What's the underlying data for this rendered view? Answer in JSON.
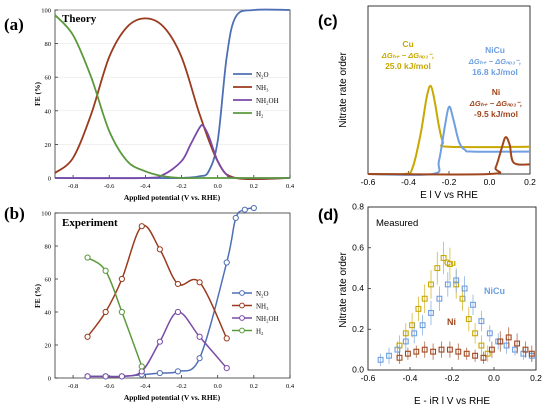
{
  "colors": {
    "n2o": "#4f6fb5",
    "nh3": "#9b3a1e",
    "nh2oh": "#7a4aa8",
    "h2": "#5b9a3c",
    "cu": "#c9a800",
    "nicu": "#6f9fe0",
    "ni": "#a0461e"
  },
  "chart_data": [
    {
      "id": "a",
      "panel_label": "(a)",
      "type": "line",
      "title": "Theory",
      "xlabel": "Applied potential (V vs. RHE)",
      "ylabel": "FE (%)",
      "xlim": [
        -0.9,
        0.4
      ],
      "ylim": [
        0,
        100
      ],
      "x_ticks": [
        "-0.8",
        "-0.6",
        "-0.4",
        "-0.2",
        "0.0",
        "0.2",
        "0.4"
      ],
      "y_ticks": [
        "0",
        "20",
        "40",
        "60",
        "80",
        "100"
      ],
      "legend_position": "right",
      "series": [
        {
          "name": "N₂O",
          "color_key": "n2o",
          "x": [
            -0.9,
            -0.4,
            -0.2,
            -0.1,
            -0.05,
            0.0,
            0.05,
            0.1,
            0.2,
            0.4
          ],
          "y": [
            0,
            0,
            0,
            1,
            4,
            22,
            72,
            96,
            100,
            100
          ]
        },
        {
          "name": "NH₃",
          "color_key": "nh3",
          "x": [
            -0.9,
            -0.8,
            -0.7,
            -0.6,
            -0.5,
            -0.4,
            -0.3,
            -0.2,
            -0.1,
            0.0,
            0.1,
            0.4
          ],
          "y": [
            3,
            12,
            38,
            72,
            90,
            95,
            90,
            72,
            38,
            10,
            0,
            0
          ]
        },
        {
          "name": "NH₂OH",
          "color_key": "nh2oh",
          "x": [
            -0.9,
            -0.4,
            -0.3,
            -0.2,
            -0.15,
            -0.1,
            -0.08,
            -0.05,
            0.0,
            0.05,
            0.1,
            0.4
          ],
          "y": [
            0,
            0,
            2,
            10,
            20,
            30,
            31,
            25,
            10,
            2,
            0,
            0
          ]
        },
        {
          "name": "H₂",
          "color_key": "h2",
          "x": [
            -0.9,
            -0.8,
            -0.7,
            -0.6,
            -0.5,
            -0.4,
            -0.3,
            -0.2,
            -0.1,
            0.4
          ],
          "y": [
            97,
            85,
            60,
            28,
            10,
            4,
            1,
            0,
            0,
            0
          ]
        }
      ]
    },
    {
      "id": "b",
      "panel_label": "(b)",
      "type": "scatter",
      "title": "Experiment",
      "xlabel": "Applied potential (V vs. RHE)",
      "ylabel": "FE (%)",
      "xlim": [
        -0.9,
        0.4
      ],
      "ylim": [
        0,
        100
      ],
      "x_ticks": [
        "-0.8",
        "-0.6",
        "-0.4",
        "-0.2",
        "0.0",
        "0.2",
        "0.4"
      ],
      "y_ticks": [
        "0",
        "20",
        "40",
        "60",
        "80",
        "100"
      ],
      "legend_position": "right",
      "series": [
        {
          "name": "N₂O",
          "color_key": "n2o",
          "x": [
            -0.72,
            -0.62,
            -0.53,
            -0.42,
            -0.32,
            -0.22,
            -0.1,
            0.05,
            0.1,
            0.15,
            0.2
          ],
          "y": [
            1,
            1,
            1,
            2,
            3,
            4,
            12,
            70,
            97,
            102,
            103
          ]
        },
        {
          "name": "NH₃",
          "color_key": "nh3",
          "x": [
            -0.72,
            -0.62,
            -0.53,
            -0.42,
            -0.32,
            -0.22,
            -0.1,
            0.05
          ],
          "y": [
            25,
            40,
            60,
            92,
            78,
            57,
            58,
            24
          ]
        },
        {
          "name": "NH₂OH",
          "color_key": "nh2oh",
          "x": [
            -0.72,
            -0.62,
            -0.53,
            -0.42,
            -0.32,
            -0.22,
            -0.1,
            0.05
          ],
          "y": [
            1,
            1,
            1,
            4,
            22,
            40,
            25,
            6
          ]
        },
        {
          "name": "H₂",
          "color_key": "h2",
          "x": [
            -0.72,
            -0.62,
            -0.53,
            -0.42
          ],
          "y": [
            73,
            65,
            40,
            7
          ]
        }
      ]
    },
    {
      "id": "c",
      "panel_label": "(c)",
      "type": "line",
      "xlabel": "E l V vs RHE",
      "ylabel": "Nitrate rate order",
      "xlim": [
        -0.6,
        0.2
      ],
      "ylim": [
        0,
        1.05
      ],
      "x_ticks": [
        "-0.6",
        "-0.4",
        "-0.2",
        "0.0",
        "0.2"
      ],
      "series": [
        {
          "name": "Cu",
          "color_key": "cu",
          "x": [
            -0.6,
            -0.42,
            -0.38,
            -0.34,
            -0.31,
            -0.29,
            -0.27,
            -0.25,
            -0.23,
            -0.2,
            0.2
          ],
          "y": [
            0,
            0,
            0.04,
            0.25,
            0.48,
            0.55,
            0.45,
            0.3,
            0.2,
            0.17,
            0.17
          ]
        },
        {
          "name": "NiCu",
          "color_key": "nicu",
          "x": [
            -0.6,
            -0.28,
            -0.25,
            -0.22,
            -0.2,
            -0.18,
            -0.15,
            -0.12,
            -0.08,
            0.2
          ],
          "y": [
            0,
            0,
            0.08,
            0.3,
            0.42,
            0.35,
            0.2,
            0.15,
            0.14,
            0.14
          ]
        },
        {
          "name": "Ni",
          "color_key": "ni",
          "x": [
            -0.6,
            0.0,
            0.03,
            0.06,
            0.08,
            0.1,
            0.12,
            0.2
          ],
          "y": [
            0,
            0,
            0.04,
            0.16,
            0.23,
            0.18,
            0.07,
            0.06
          ]
        }
      ],
      "annotations": [
        {
          "color_key": "cu",
          "lines": [
            "Cu",
            "ΔGₕ₊ − ΔGₙₒ₃⁻,",
            "25.0 kJ/mol"
          ]
        },
        {
          "color_key": "nicu",
          "lines": [
            "NiCu",
            "ΔGₕ₊ − ΔGₙₒ₃⁻,",
            "16.8 kJ/mol"
          ]
        },
        {
          "color_key": "ni",
          "lines": [
            "Ni",
            "ΔGₕ₊ − ΔGₙₒ₃⁻,",
            "-9.5 kJ/mol"
          ]
        }
      ]
    },
    {
      "id": "d",
      "panel_label": "(d)",
      "type": "scatter",
      "title": "Measured",
      "xlabel": "E - iR l V vs RHE",
      "ylabel": "Nitrate rate order",
      "xlim": [
        -0.6,
        0.2
      ],
      "ylim": [
        0,
        0.8
      ],
      "x_ticks": [
        "-0.6",
        "-0.4",
        "-0.2",
        "0.0",
        "0.2"
      ],
      "y_ticks": [
        "0.0",
        "0.2",
        "0.4",
        "0.6",
        "0.8"
      ],
      "series": [
        {
          "name": "Cu",
          "color_key": "cu",
          "x": [
            -0.45,
            -0.42,
            -0.39,
            -0.36,
            -0.33,
            -0.3,
            -0.27,
            -0.24,
            -0.21,
            -0.18,
            -0.15,
            -0.12,
            -0.09,
            -0.06,
            -0.03
          ],
          "y": [
            0.12,
            0.18,
            0.22,
            0.3,
            0.35,
            0.42,
            0.5,
            0.55,
            0.52,
            0.42,
            0.35,
            0.25,
            0.18,
            0.12,
            0.08
          ],
          "err": [
            0.05,
            0.05,
            0.06,
            0.06,
            0.07,
            0.07,
            0.08,
            0.08,
            0.08,
            0.07,
            0.06,
            0.06,
            0.05,
            0.05,
            0.04
          ]
        },
        {
          "name": "NiCu",
          "color_key": "nicu",
          "x": [
            -0.54,
            -0.5,
            -0.46,
            -0.42,
            -0.38,
            -0.34,
            -0.3,
            -0.26,
            -0.22,
            -0.18,
            -0.14,
            -0.1,
            -0.06,
            -0.02,
            0.02,
            0.06,
            0.1,
            0.14,
            0.18
          ],
          "y": [
            0.05,
            0.07,
            0.1,
            0.14,
            0.18,
            0.22,
            0.28,
            0.35,
            0.42,
            0.44,
            0.4,
            0.32,
            0.24,
            0.18,
            0.14,
            0.12,
            0.1,
            0.08,
            0.07
          ],
          "err": [
            0.03,
            0.04,
            0.04,
            0.05,
            0.05,
            0.05,
            0.06,
            0.06,
            0.06,
            0.06,
            0.06,
            0.05,
            0.05,
            0.04,
            0.04,
            0.04,
            0.03,
            0.03,
            0.03
          ]
        },
        {
          "name": "Ni",
          "color_key": "ni",
          "x": [
            -0.45,
            -0.41,
            -0.37,
            -0.33,
            -0.29,
            -0.25,
            -0.21,
            -0.17,
            -0.13,
            -0.09,
            -0.05,
            -0.01,
            0.03,
            0.07,
            0.11,
            0.15,
            0.18
          ],
          "y": [
            0.06,
            0.08,
            0.09,
            0.1,
            0.09,
            0.1,
            0.1,
            0.09,
            0.08,
            0.07,
            0.06,
            0.1,
            0.14,
            0.16,
            0.13,
            0.1,
            0.08
          ],
          "err": [
            0.03,
            0.03,
            0.03,
            0.04,
            0.04,
            0.04,
            0.04,
            0.04,
            0.03,
            0.03,
            0.03,
            0.04,
            0.05,
            0.05,
            0.05,
            0.04,
            0.04
          ]
        }
      ],
      "annotations": [
        {
          "color_key": "cu",
          "lines": [
            "Cu"
          ]
        },
        {
          "color_key": "nicu",
          "lines": [
            "NiCu"
          ]
        },
        {
          "color_key": "ni",
          "lines": [
            "Ni"
          ]
        }
      ]
    }
  ]
}
